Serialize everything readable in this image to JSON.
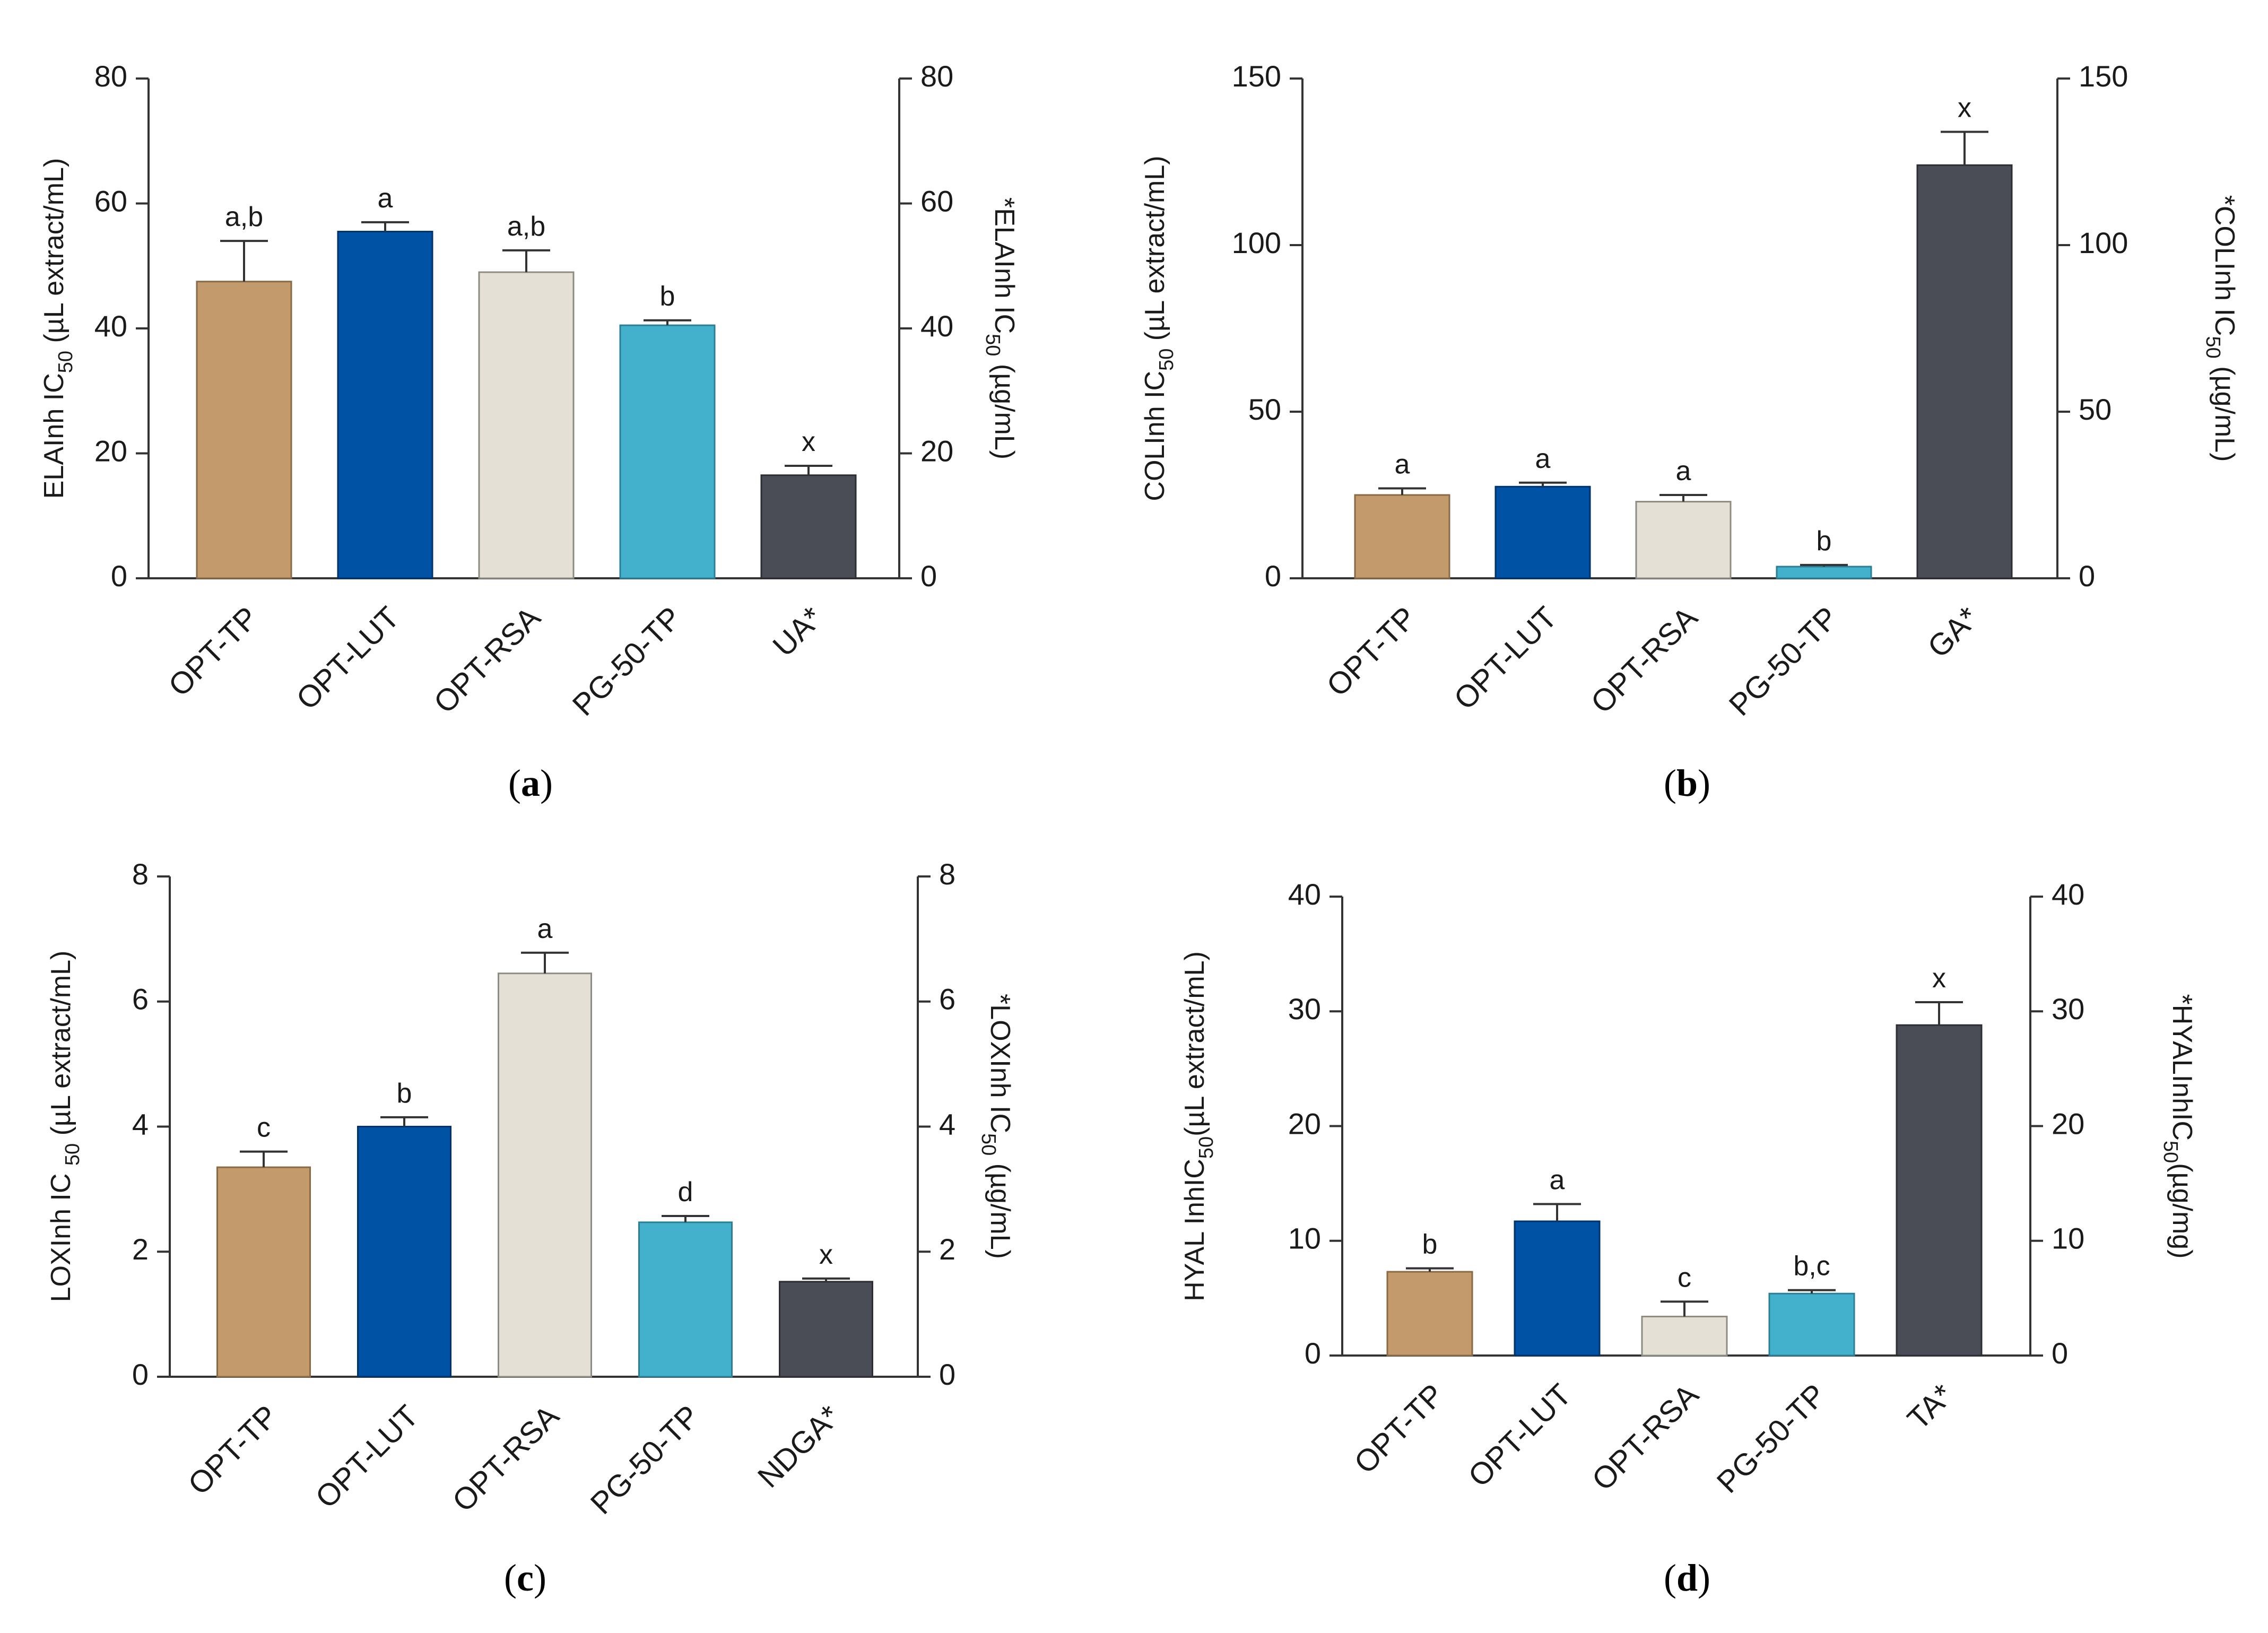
{
  "chart_data": [
    {
      "panel": "(a)",
      "panel_letter": "a",
      "type": "bar",
      "categories": [
        "OPT-TP",
        "OPT-LUT",
        "OPT-RSA",
        "PG-50-TP",
        "UA*"
      ],
      "values": [
        47.5,
        55.5,
        49,
        40.5,
        16.5
      ],
      "errors": [
        6.5,
        1.5,
        3.5,
        0.8,
        1.5
      ],
      "significance": [
        "a,b",
        "a",
        "a,b",
        "b",
        "x"
      ],
      "ylabel_left": {
        "pre": "ELAInh IC",
        "sub": "50",
        "post": " (µL extract/mL)"
      },
      "ylabel_right": {
        "pre": "*ELAInh IC",
        "sub": "50",
        "post": " (µg/mL)"
      },
      "ylim": [
        0,
        80
      ],
      "yticks": [
        0,
        20,
        40,
        60,
        80
      ],
      "ytick_labels": [
        "0",
        "20",
        "40",
        "60",
        "80"
      ]
    },
    {
      "panel": "(b)",
      "panel_letter": "b",
      "type": "bar",
      "categories": [
        "OPT-TP",
        "OPT-LUT",
        "OPT-RSA",
        "PG-50-TP",
        "GA*"
      ],
      "values": [
        25,
        27.5,
        23,
        3.5,
        124
      ],
      "errors": [
        2,
        1.2,
        2,
        0.5,
        10
      ],
      "significance": [
        "a",
        "a",
        "a",
        "b",
        "x"
      ],
      "ylabel_left": {
        "pre": "COLInh IC",
        "sub": "50",
        "post": " (µL extract/mL)"
      },
      "ylabel_right": {
        "pre": "*COLInh IC",
        "sub": "50",
        "post": " (µg/mL)"
      },
      "ylim": [
        0,
        150
      ],
      "yticks": [
        0,
        50,
        100,
        150
      ],
      "ytick_labels": [
        "0",
        "50",
        "100",
        "150"
      ]
    },
    {
      "panel": "(c)",
      "panel_letter": "c",
      "type": "bar",
      "categories": [
        "OPT-TP",
        "OPT-LUT",
        "OPT-RSA",
        "PG-50-TP",
        "NDGA*"
      ],
      "values": [
        3.35,
        4.0,
        6.45,
        2.47,
        1.52
      ],
      "errors": [
        0.25,
        0.15,
        0.33,
        0.1,
        0.05
      ],
      "significance": [
        "c",
        "b",
        "a",
        "d",
        "x"
      ],
      "ylabel_left": {
        "pre": "LOXInh IC ",
        "sub": "50",
        "post": " (µL extract/mL)"
      },
      "ylabel_right": {
        "pre": "*LOXInh IC",
        "sub": "50",
        "post": " (µg/mL)"
      },
      "ylim": [
        0,
        8
      ],
      "yticks": [
        0,
        2,
        4,
        6,
        8
      ],
      "ytick_labels": [
        "0",
        "2",
        "4",
        "6",
        "8"
      ]
    },
    {
      "panel": "(d)",
      "panel_letter": "d",
      "type": "bar",
      "categories": [
        "OPT-TP",
        "OPT-LUT",
        "OPT-RSA",
        "PG-50-TP",
        "TA*"
      ],
      "values": [
        7.3,
        11.7,
        3.4,
        5.4,
        28.8
      ],
      "errors": [
        0.3,
        1.5,
        1.3,
        0.3,
        2.0
      ],
      "significance": [
        "b",
        "a",
        "c",
        "b,c",
        "x"
      ],
      "ylabel_left": {
        "pre": "HYAL InhIC",
        "sub": "50",
        "post": "(µL extract/mL)"
      },
      "ylabel_right": {
        "pre": "*HYALInhIC",
        "sub": "50",
        "post": "(µg/mg)"
      },
      "ylim": [
        0,
        40
      ],
      "yticks": [
        0,
        10,
        20,
        30,
        40
      ],
      "ytick_labels": [
        "0",
        "10",
        "20",
        "30",
        "40"
      ]
    }
  ],
  "colors": {
    "bars": [
      "#c39a6b",
      "#0052a5",
      "#e4e0d5",
      "#43b0cc",
      "#4a4d55"
    ],
    "bar_strokes": [
      "#8a6a45",
      "#00336b",
      "#8f8b82",
      "#2a7f96",
      "#2c2e33"
    ],
    "axis": "#333333"
  }
}
